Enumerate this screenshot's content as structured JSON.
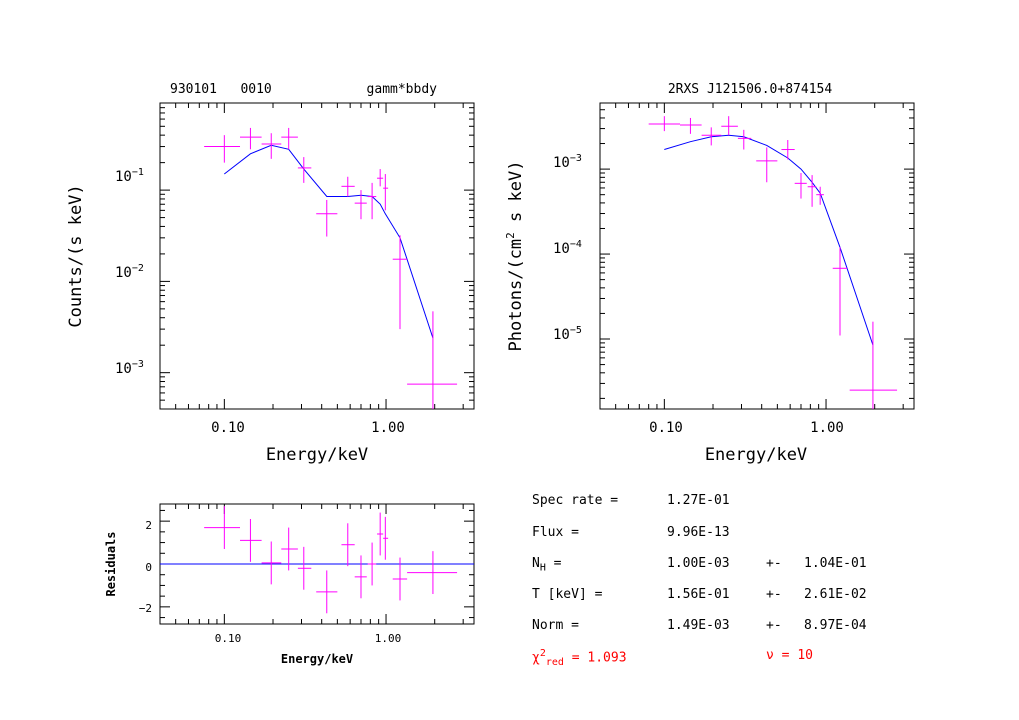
{
  "panels": {
    "counts": {
      "title_left": "930101   0010",
      "title_right": "gamm*bbdy",
      "xlabel": "Energy/keV",
      "ylabel": "Counts/(s keV)",
      "xticks": [
        "0.10",
        "1.00"
      ],
      "yticks": [
        {
          "base": "10",
          "exp": "−1"
        },
        {
          "base": "10",
          "exp": "−2"
        },
        {
          "base": "10",
          "exp": "−3"
        }
      ]
    },
    "photons": {
      "title": "2RXS J121506.0+874154",
      "xlabel": "Energy/keV",
      "ylabel_pre": "Photons/(cm",
      "ylabel_sup": "2",
      "ylabel_post": " s keV)",
      "xticks": [
        "0.10",
        "1.00"
      ],
      "yticks": [
        {
          "base": "10",
          "exp": "−3"
        },
        {
          "base": "10",
          "exp": "−4"
        },
        {
          "base": "10",
          "exp": "−5"
        }
      ]
    },
    "residuals": {
      "xlabel": "Energy/keV",
      "ylabel": "Residuals",
      "xticks": [
        "0.10",
        "1.00"
      ],
      "yticks": [
        "2",
        "0",
        "−2"
      ]
    }
  },
  "fit_info": {
    "spec_rate_label": "Spec rate =",
    "spec_rate_value": "1.27E-01",
    "flux_label": "Flux =",
    "flux_value": "9.96E-13",
    "nh_label_main": "N",
    "nh_label_sub": "H",
    "nh_label_eq": " =",
    "nh_value": "1.00E-03",
    "nh_pm": "+-",
    "nh_err": "1.04E-01",
    "t_label": "T [keV] =",
    "t_value": "1.56E-01",
    "t_pm": "+-",
    "t_err": "2.61E-02",
    "norm_label": "Norm =",
    "norm_value": "1.49E-03",
    "norm_pm": "+-",
    "norm_err": "8.97E-04",
    "chi_symbol": "χ",
    "chi_sup": "2",
    "chi_sub": "red",
    "chi_eq": " = ",
    "chi_value": "1.093",
    "nu_symbol": "ν",
    "nu_eq": " = ",
    "nu_value": "10"
  },
  "colors": {
    "data": "#ff00ff",
    "model": "#0000ff",
    "stats": "#ff0000",
    "axes": "#000000"
  },
  "chart_data": [
    {
      "type": "scatter",
      "name": "counts",
      "x_scale": "log",
      "y_scale": "log",
      "xlim": [
        0.04,
        3.5
      ],
      "ylim": [
        0.0004,
        0.9
      ],
      "data": [
        {
          "x": 0.1,
          "xlo": 0.075,
          "xhi": 0.125,
          "y": 0.3,
          "ylo": 0.2,
          "yhi": 0.4
        },
        {
          "x": 0.145,
          "xlo": 0.125,
          "xhi": 0.17,
          "y": 0.38,
          "ylo": 0.28,
          "yhi": 0.48
        },
        {
          "x": 0.195,
          "xlo": 0.17,
          "xhi": 0.225,
          "y": 0.32,
          "ylo": 0.22,
          "yhi": 0.42
        },
        {
          "x": 0.25,
          "xlo": 0.225,
          "xhi": 0.285,
          "y": 0.38,
          "ylo": 0.28,
          "yhi": 0.48
        },
        {
          "x": 0.31,
          "xlo": 0.285,
          "xhi": 0.345,
          "y": 0.175,
          "ylo": 0.12,
          "yhi": 0.23
        },
        {
          "x": 0.43,
          "xlo": 0.37,
          "xhi": 0.5,
          "y": 0.055,
          "ylo": 0.031,
          "yhi": 0.078
        },
        {
          "x": 0.58,
          "xlo": 0.53,
          "xhi": 0.64,
          "y": 0.11,
          "ylo": 0.085,
          "yhi": 0.14
        },
        {
          "x": 0.7,
          "xlo": 0.64,
          "xhi": 0.76,
          "y": 0.072,
          "ylo": 0.048,
          "yhi": 0.1
        },
        {
          "x": 0.82,
          "xlo": 0.77,
          "xhi": 0.87,
          "y": 0.085,
          "ylo": 0.048,
          "yhi": 0.12
        },
        {
          "x": 0.92,
          "xlo": 0.88,
          "xhi": 0.96,
          "y": 0.135,
          "ylo": 0.11,
          "yhi": 0.17
        },
        {
          "x": 0.99,
          "xlo": 0.96,
          "xhi": 1.03,
          "y": 0.105,
          "ylo": 0.06,
          "yhi": 0.15
        },
        {
          "x": 1.22,
          "xlo": 1.1,
          "xhi": 1.35,
          "y": 0.0175,
          "ylo": 0.003,
          "yhi": 0.032
        },
        {
          "x": 1.95,
          "xlo": 1.35,
          "xhi": 2.75,
          "y": 0.00075,
          "ylo": 0.0004,
          "yhi": 0.0047
        }
      ],
      "model": {
        "x": [
          0.1,
          0.145,
          0.195,
          0.25,
          0.31,
          0.43,
          0.58,
          0.7,
          0.82,
          0.92,
          0.99,
          1.22,
          1.95
        ],
        "y": [
          0.15,
          0.25,
          0.31,
          0.28,
          0.17,
          0.085,
          0.085,
          0.088,
          0.085,
          0.07,
          0.055,
          0.03,
          0.0024
        ]
      }
    },
    {
      "type": "scatter",
      "name": "photons",
      "x_scale": "log",
      "y_scale": "log",
      "xlim": [
        0.04,
        3.5
      ],
      "ylim": [
        1.5e-06,
        0.006
      ],
      "data": [
        {
          "x": 0.1,
          "xlo": 0.08,
          "xhi": 0.125,
          "y": 0.0034,
          "ylo": 0.0028,
          "yhi": 0.0042
        },
        {
          "x": 0.145,
          "xlo": 0.125,
          "xhi": 0.17,
          "y": 0.0033,
          "ylo": 0.0026,
          "yhi": 0.004
        },
        {
          "x": 0.195,
          "xlo": 0.17,
          "xhi": 0.225,
          "y": 0.0025,
          "ylo": 0.0019,
          "yhi": 0.0031
        },
        {
          "x": 0.25,
          "xlo": 0.225,
          "xhi": 0.285,
          "y": 0.0032,
          "ylo": 0.0025,
          "yhi": 0.0042
        },
        {
          "x": 0.31,
          "xlo": 0.285,
          "xhi": 0.345,
          "y": 0.0023,
          "ylo": 0.0017,
          "yhi": 0.0029
        },
        {
          "x": 0.43,
          "xlo": 0.37,
          "xhi": 0.5,
          "y": 0.00125,
          "ylo": 0.0007,
          "yhi": 0.0018
        },
        {
          "x": 0.58,
          "xlo": 0.53,
          "xhi": 0.64,
          "y": 0.0017,
          "ylo": 0.0013,
          "yhi": 0.0022
        },
        {
          "x": 0.7,
          "xlo": 0.64,
          "xhi": 0.76,
          "y": 0.00068,
          "ylo": 0.00045,
          "yhi": 0.0009
        },
        {
          "x": 0.82,
          "xlo": 0.77,
          "xhi": 0.87,
          "y": 0.00062,
          "ylo": 0.00036,
          "yhi": 0.00085
        },
        {
          "x": 0.92,
          "xlo": 0.87,
          "xhi": 0.97,
          "y": 0.0005,
          "ylo": 0.00038,
          "yhi": 0.00062
        },
        {
          "x": 1.22,
          "xlo": 1.1,
          "xhi": 1.35,
          "y": 6.8e-05,
          "ylo": 1.1e-05,
          "yhi": 0.00012
        },
        {
          "x": 1.95,
          "xlo": 1.4,
          "xhi": 2.75,
          "y": 2.5e-06,
          "ylo": 1.5e-06,
          "yhi": 1.6e-05
        }
      ],
      "model": {
        "x": [
          0.1,
          0.145,
          0.195,
          0.25,
          0.31,
          0.43,
          0.58,
          0.7,
          0.82,
          0.92,
          1.22,
          1.95
        ],
        "y": [
          0.0017,
          0.0021,
          0.0024,
          0.0025,
          0.0024,
          0.0019,
          0.00135,
          0.001,
          0.0007,
          0.00052,
          0.00012,
          8.5e-06
        ]
      }
    },
    {
      "type": "scatter",
      "name": "residuals",
      "x_scale": "log",
      "y_scale": "linear",
      "xlim": [
        0.04,
        3.5
      ],
      "ylim": [
        -2.8,
        2.8
      ],
      "data": [
        {
          "x": 0.1,
          "xlo": 0.075,
          "xhi": 0.125,
          "y": 1.7,
          "ylo": 0.7,
          "yhi": 2.7
        },
        {
          "x": 0.145,
          "xlo": 0.125,
          "xhi": 0.17,
          "y": 1.1,
          "ylo": 0.1,
          "yhi": 2.1
        },
        {
          "x": 0.195,
          "xlo": 0.17,
          "xhi": 0.225,
          "y": 0.05,
          "ylo": -0.95,
          "yhi": 1.05
        },
        {
          "x": 0.25,
          "xlo": 0.225,
          "xhi": 0.285,
          "y": 0.7,
          "ylo": -0.3,
          "yhi": 1.7
        },
        {
          "x": 0.31,
          "xlo": 0.285,
          "xhi": 0.345,
          "y": -0.2,
          "ylo": -1.2,
          "yhi": 0.8
        },
        {
          "x": 0.43,
          "xlo": 0.37,
          "xhi": 0.5,
          "y": -1.3,
          "ylo": -2.3,
          "yhi": -0.3
        },
        {
          "x": 0.58,
          "xlo": 0.53,
          "xhi": 0.64,
          "y": 0.9,
          "ylo": -0.1,
          "yhi": 1.9
        },
        {
          "x": 0.7,
          "xlo": 0.64,
          "xhi": 0.76,
          "y": -0.6,
          "ylo": -1.6,
          "yhi": 0.4
        },
        {
          "x": 0.82,
          "xlo": 0.77,
          "xhi": 0.87,
          "y": 0.0,
          "ylo": -1.0,
          "yhi": 1.0
        },
        {
          "x": 0.92,
          "xlo": 0.88,
          "xhi": 0.96,
          "y": 1.4,
          "ylo": 0.4,
          "yhi": 2.4
        },
        {
          "x": 0.99,
          "xlo": 0.96,
          "xhi": 1.03,
          "y": 1.2,
          "ylo": 0.2,
          "yhi": 2.2
        },
        {
          "x": 1.22,
          "xlo": 1.1,
          "xhi": 1.35,
          "y": -0.7,
          "ylo": -1.7,
          "yhi": 0.3
        },
        {
          "x": 1.95,
          "xlo": 1.35,
          "xhi": 2.75,
          "y": -0.4,
          "ylo": -1.4,
          "yhi": 0.6
        }
      ],
      "model": {
        "x": [
          0.04,
          3.5
        ],
        "y": [
          0,
          0
        ]
      }
    }
  ]
}
